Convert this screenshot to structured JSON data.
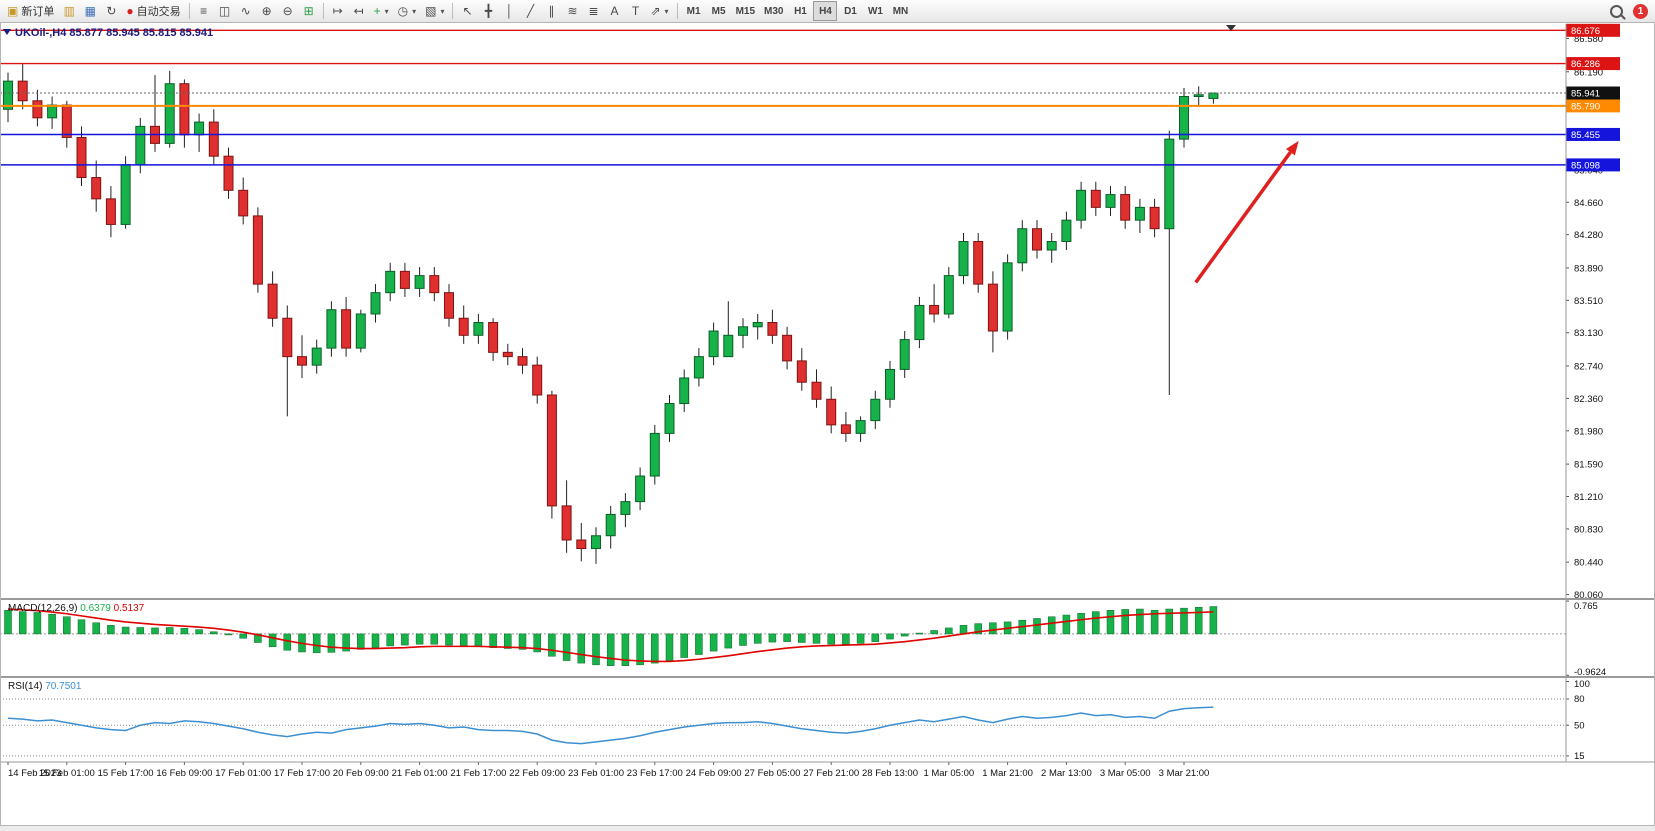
{
  "toolbar": {
    "new_order_label": "新订单",
    "autotrading_label": "自动交易",
    "timeframes": [
      "M1",
      "M5",
      "M15",
      "M30",
      "H1",
      "H4",
      "D1",
      "W1",
      "MN"
    ],
    "active_timeframe": "H4",
    "notification_count": "1"
  },
  "icons": {
    "new_order": "▣",
    "charts": "▥",
    "window": "▦",
    "refresh": "↻",
    "autotrading": "●",
    "bars": "≡",
    "candles": "◫",
    "linechart": "∿",
    "zoom_in": "⊕",
    "zoom_out": "⊖",
    "tile": "⊞",
    "autoscroll": "↦",
    "shift": "↤",
    "new_chart": "+",
    "period": "◷",
    "template": "▧",
    "caret": "▾",
    "cursor": "↖",
    "crosshair": "╋",
    "vline": "│",
    "trendline": "╱",
    "channel": "∥",
    "fib": "≋",
    "objects": "≣",
    "text": "A",
    "label": "T",
    "arrows": "⇗"
  },
  "chart_data": [
    {
      "id": "price",
      "type": "candlestick",
      "symbol": "UKOil-",
      "period": "H4",
      "ohlc_header": {
        "open": "85.877",
        "high": "85.945",
        "low": "85.815",
        "close": "85.941"
      },
      "ylim": [
        80.02,
        86.75
      ],
      "yticks": [
        "86.580",
        "86.190",
        "85.800",
        "85.420",
        "85.040",
        "84.660",
        "84.280",
        "83.890",
        "83.510",
        "83.130",
        "82.740",
        "82.360",
        "81.980",
        "81.590",
        "81.210",
        "80.830",
        "80.440",
        "80.060"
      ],
      "x_labels": [
        "14 Feb 2023",
        "15 Feb 01:00",
        "15 Feb 17:00",
        "16 Feb 09:00",
        "17 Feb 01:00",
        "17 Feb 17:00",
        "20 Feb 09:00",
        "21 Feb 01:00",
        "21 Feb 17:00",
        "22 Feb 09:00",
        "23 Feb 01:00",
        "23 Feb 17:00",
        "24 Feb 09:00",
        "27 Feb 05:00",
        "27 Feb 21:00",
        "28 Feb 13:00",
        "1 Mar 05:00",
        "1 Mar 21:00",
        "2 Mar 13:00",
        "3 Mar 05:00",
        "3 Mar 21:00"
      ],
      "label_every": 4,
      "candles": [
        [
          85.75,
          86.18,
          85.6,
          86.08
        ],
        [
          86.08,
          86.28,
          85.75,
          85.85
        ],
        [
          85.85,
          85.98,
          85.55,
          85.65
        ],
        [
          85.65,
          85.9,
          85.52,
          85.8
        ],
        [
          85.8,
          85.85,
          85.3,
          85.42
        ],
        [
          85.42,
          85.55,
          84.85,
          84.95
        ],
        [
          84.95,
          85.15,
          84.55,
          84.7
        ],
        [
          84.7,
          84.85,
          84.25,
          84.4
        ],
        [
          84.4,
          85.2,
          84.35,
          85.1
        ],
        [
          85.1,
          85.65,
          85.0,
          85.55
        ],
        [
          85.55,
          86.15,
          85.25,
          85.35
        ],
        [
          85.35,
          86.2,
          85.3,
          86.05
        ],
        [
          86.05,
          86.1,
          85.3,
          85.45
        ],
        [
          85.45,
          85.7,
          85.25,
          85.6
        ],
        [
          85.6,
          85.75,
          85.1,
          85.2
        ],
        [
          85.2,
          85.3,
          84.7,
          84.8
        ],
        [
          84.8,
          84.95,
          84.4,
          84.5
        ],
        [
          84.5,
          84.6,
          83.6,
          83.7
        ],
        [
          83.7,
          83.85,
          83.2,
          83.3
        ],
        [
          83.3,
          83.45,
          82.15,
          82.85
        ],
        [
          82.85,
          83.1,
          82.6,
          82.75
        ],
        [
          82.75,
          83.05,
          82.65,
          82.95
        ],
        [
          82.95,
          83.5,
          82.85,
          83.4
        ],
        [
          83.4,
          83.55,
          82.85,
          82.95
        ],
        [
          82.95,
          83.4,
          82.9,
          83.35
        ],
        [
          83.35,
          83.7,
          83.25,
          83.6
        ],
        [
          83.6,
          83.95,
          83.5,
          83.85
        ],
        [
          83.85,
          83.95,
          83.55,
          83.65
        ],
        [
          83.65,
          83.9,
          83.55,
          83.8
        ],
        [
          83.8,
          83.9,
          83.5,
          83.6
        ],
        [
          83.6,
          83.7,
          83.2,
          83.3
        ],
        [
          83.3,
          83.45,
          83.0,
          83.1
        ],
        [
          83.1,
          83.35,
          83.0,
          83.25
        ],
        [
          83.25,
          83.3,
          82.8,
          82.9
        ],
        [
          82.9,
          83.0,
          82.75,
          82.85
        ],
        [
          82.85,
          82.95,
          82.65,
          82.75
        ],
        [
          82.75,
          82.85,
          82.3,
          82.4
        ],
        [
          82.4,
          82.45,
          80.95,
          81.1
        ],
        [
          81.1,
          81.4,
          80.55,
          80.7
        ],
        [
          80.7,
          80.9,
          80.45,
          80.6
        ],
        [
          80.6,
          80.85,
          80.42,
          80.75
        ],
        [
          80.75,
          81.1,
          80.6,
          81.0
        ],
        [
          81.0,
          81.25,
          80.85,
          81.15
        ],
        [
          81.15,
          81.55,
          81.05,
          81.45
        ],
        [
          81.45,
          82.05,
          81.35,
          81.95
        ],
        [
          81.95,
          82.4,
          81.85,
          82.3
        ],
        [
          82.3,
          82.7,
          82.2,
          82.6
        ],
        [
          82.6,
          82.95,
          82.5,
          82.85
        ],
        [
          82.85,
          83.25,
          82.75,
          83.15
        ],
        [
          82.85,
          83.5,
          83.0,
          83.1
        ],
        [
          83.1,
          83.3,
          82.95,
          83.2
        ],
        [
          83.2,
          83.35,
          83.05,
          83.25
        ],
        [
          83.25,
          83.4,
          83.0,
          83.1
        ],
        [
          83.1,
          83.2,
          82.7,
          82.8
        ],
        [
          82.8,
          82.95,
          82.45,
          82.55
        ],
        [
          82.55,
          82.7,
          82.25,
          82.35
        ],
        [
          82.35,
          82.5,
          81.95,
          82.05
        ],
        [
          82.05,
          82.2,
          81.85,
          81.95
        ],
        [
          81.95,
          82.15,
          81.85,
          82.1
        ],
        [
          82.1,
          82.45,
          82.0,
          82.35
        ],
        [
          82.35,
          82.8,
          82.25,
          82.7
        ],
        [
          82.7,
          83.15,
          82.6,
          83.05
        ],
        [
          83.05,
          83.55,
          82.95,
          83.45
        ],
        [
          83.45,
          83.7,
          83.25,
          83.35
        ],
        [
          83.35,
          83.9,
          83.3,
          83.8
        ],
        [
          83.8,
          84.3,
          83.7,
          84.2
        ],
        [
          84.2,
          84.3,
          83.6,
          83.7
        ],
        [
          83.7,
          83.85,
          82.9,
          83.15
        ],
        [
          83.15,
          84.05,
          83.05,
          83.95
        ],
        [
          83.95,
          84.45,
          83.85,
          84.35
        ],
        [
          84.35,
          84.45,
          84.0,
          84.1
        ],
        [
          84.1,
          84.3,
          83.95,
          84.2
        ],
        [
          84.2,
          84.55,
          84.1,
          84.45
        ],
        [
          84.45,
          84.9,
          84.35,
          84.8
        ],
        [
          84.8,
          84.9,
          84.5,
          84.6
        ],
        [
          84.6,
          84.85,
          84.5,
          84.75
        ],
        [
          84.75,
          84.85,
          84.35,
          84.45
        ],
        [
          84.45,
          84.7,
          84.3,
          84.6
        ],
        [
          84.6,
          84.7,
          84.25,
          84.35
        ],
        [
          84.35,
          85.5,
          82.4,
          85.4
        ],
        [
          85.4,
          86.0,
          85.3,
          85.9
        ],
        [
          85.9,
          86.02,
          85.78,
          85.92
        ],
        [
          85.877,
          85.945,
          85.815,
          85.941
        ]
      ],
      "levels": [
        {
          "label": "86.676",
          "price": 86.676,
          "color": "#dc1414",
          "width": 1.3
        },
        {
          "label": "86.286",
          "price": 86.286,
          "color": "#dc1414",
          "width": 1.3
        },
        {
          "label": "85.790",
          "price": 85.79,
          "color": "#ff8a00",
          "width": 2
        },
        {
          "label": "85.455",
          "price": 85.455,
          "color": "#1414dc",
          "width": 1.5
        },
        {
          "label": "85.098",
          "price": 85.098,
          "color": "#1414dc",
          "width": 1.5
        }
      ],
      "bid": {
        "label": "85.941",
        "price": 85.941,
        "tag_color": "#111111"
      },
      "arrow": {
        "from_index": 80.8,
        "from_price": 83.72,
        "to_index": 87.8,
        "to_price": 85.38,
        "color": "#e01f1f"
      },
      "up_color": "#18b24b",
      "down_color": "#e02f2f"
    },
    {
      "id": "macd",
      "type": "bar+line",
      "title": "MACD(12,26,9)",
      "value_main": "0.6379",
      "value_signal": "0.5137",
      "ylim": [
        -0.98,
        0.79
      ],
      "yticks": [
        "0.765",
        "-0.9624"
      ],
      "colors": {
        "histogram": "#17b24a",
        "signal": "#e00000"
      },
      "histogram": [
        0.55,
        0.52,
        0.5,
        0.46,
        0.4,
        0.33,
        0.26,
        0.2,
        0.16,
        0.15,
        0.14,
        0.15,
        0.13,
        0.1,
        0.05,
        -0.02,
        -0.1,
        -0.2,
        -0.3,
        -0.38,
        -0.42,
        -0.44,
        -0.43,
        -0.4,
        -0.36,
        -0.32,
        -0.28,
        -0.26,
        -0.24,
        -0.24,
        -0.26,
        -0.28,
        -0.3,
        -0.32,
        -0.34,
        -0.36,
        -0.42,
        -0.52,
        -0.62,
        -0.68,
        -0.72,
        -0.74,
        -0.74,
        -0.72,
        -0.68,
        -0.62,
        -0.55,
        -0.48,
        -0.4,
        -0.33,
        -0.27,
        -0.22,
        -0.19,
        -0.18,
        -0.2,
        -0.22,
        -0.24,
        -0.24,
        -0.22,
        -0.18,
        -0.12,
        -0.05,
        0.02,
        0.08,
        0.14,
        0.2,
        0.24,
        0.26,
        0.28,
        0.32,
        0.36,
        0.4,
        0.44,
        0.48,
        0.52,
        0.55,
        0.57,
        0.58,
        0.55,
        0.58,
        0.6,
        0.62,
        0.6379
      ],
      "signal": [
        0.58,
        0.56,
        0.54,
        0.51,
        0.47,
        0.42,
        0.37,
        0.32,
        0.28,
        0.25,
        0.22,
        0.2,
        0.18,
        0.16,
        0.13,
        0.09,
        0.04,
        -0.02,
        -0.09,
        -0.16,
        -0.22,
        -0.27,
        -0.31,
        -0.33,
        -0.34,
        -0.34,
        -0.33,
        -0.32,
        -0.3,
        -0.29,
        -0.29,
        -0.29,
        -0.29,
        -0.3,
        -0.31,
        -0.32,
        -0.34,
        -0.38,
        -0.43,
        -0.48,
        -0.53,
        -0.57,
        -0.61,
        -0.63,
        -0.64,
        -0.64,
        -0.62,
        -0.59,
        -0.55,
        -0.51,
        -0.46,
        -0.41,
        -0.37,
        -0.33,
        -0.3,
        -0.28,
        -0.27,
        -0.26,
        -0.25,
        -0.24,
        -0.21,
        -0.18,
        -0.14,
        -0.1,
        -0.05,
        0.0,
        0.05,
        0.09,
        0.13,
        0.17,
        0.21,
        0.25,
        0.29,
        0.33,
        0.37,
        0.4,
        0.43,
        0.45,
        0.47,
        0.48,
        0.49,
        0.5,
        0.5137
      ]
    },
    {
      "id": "rsi",
      "type": "line",
      "title": "RSI(14)",
      "value": "70.7501",
      "ylim": [
        8,
        104
      ],
      "yticks": [
        "100",
        "80",
        "50",
        "15"
      ],
      "levels": [
        80,
        50,
        15
      ],
      "color": "#3c8fd1",
      "values": [
        58,
        57,
        55,
        56,
        53,
        50,
        47,
        45,
        44,
        50,
        53,
        52,
        55,
        54,
        52,
        49,
        46,
        42,
        39,
        37,
        40,
        42,
        41,
        45,
        47,
        49,
        52,
        51,
        52,
        50,
        47,
        48,
        45,
        44,
        44,
        43,
        40,
        33,
        30,
        29,
        31,
        33,
        35,
        38,
        42,
        45,
        48,
        50,
        52,
        53,
        53,
        54,
        52,
        49,
        46,
        44,
        42,
        41,
        43,
        46,
        50,
        53,
        56,
        54,
        57,
        60,
        56,
        53,
        57,
        60,
        58,
        59,
        61,
        64,
        61,
        62,
        59,
        60,
        58,
        66,
        69,
        70,
        70.75
      ]
    }
  ]
}
